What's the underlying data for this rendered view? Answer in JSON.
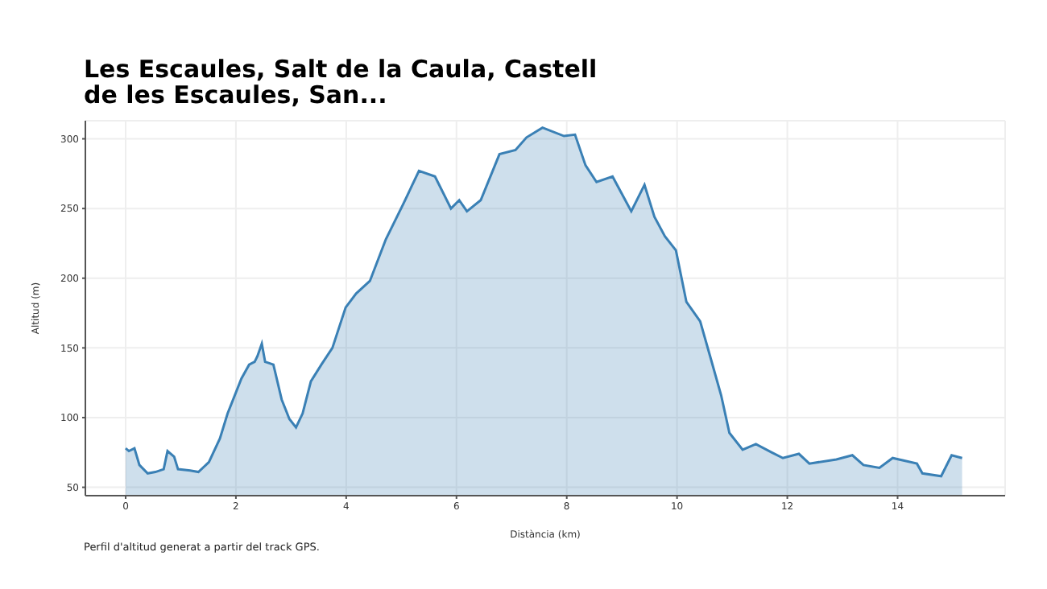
{
  "chart_data": {
    "type": "area",
    "title": "Les Escaules, Salt de la Caula, Castell de les Escaules, San...",
    "xlabel": "Distància (km)",
    "ylabel": "Altitud (m)",
    "x": [
      0,
      0.06,
      0.16,
      0.25,
      0.4,
      0.54,
      0.69,
      0.76,
      0.88,
      0.95,
      1.17,
      1.32,
      1.51,
      1.71,
      1.85,
      2.1,
      2.24,
      2.34,
      2.39,
      2.47,
      2.53,
      2.68,
      2.83,
      2.97,
      3.09,
      3.21,
      3.36,
      3.55,
      3.75,
      3.99,
      4.18,
      4.43,
      4.72,
      5.02,
      5.32,
      5.61,
      5.9,
      6.05,
      6.19,
      6.44,
      6.78,
      7.07,
      7.27,
      7.56,
      7.95,
      8.15,
      8.34,
      8.54,
      8.83,
      9.17,
      9.41,
      9.59,
      9.78,
      9.98,
      10.17,
      10.42,
      10.6,
      10.8,
      10.95,
      11.19,
      11.43,
      11.72,
      11.92,
      12.21,
      12.4,
      12.89,
      13.18,
      13.38,
      13.67,
      13.91,
      14.35,
      14.45,
      14.79,
      14.98,
      15.17
    ],
    "series": [
      {
        "color": "#3a80b5",
        "values": [
          78,
          76,
          78,
          66,
          60,
          61,
          63,
          76,
          72,
          63,
          62,
          61,
          68,
          85,
          103,
          128,
          138,
          140,
          144,
          153,
          140,
          138,
          113,
          99,
          93,
          103,
          126,
          138,
          150,
          179,
          189,
          198,
          228,
          252,
          277,
          273,
          250,
          256,
          248,
          256,
          289,
          292,
          301,
          308,
          302,
          303,
          281,
          269,
          273,
          248,
          267,
          244,
          230,
          220,
          183,
          169,
          144,
          116,
          89,
          77,
          81,
          75,
          71,
          74,
          67,
          70,
          73,
          66,
          64,
          71,
          67,
          60,
          58,
          73,
          71
        ]
      }
    ],
    "xlim": [
      -0.73,
      15.95
    ],
    "xticks": [
      0,
      2,
      4,
      6,
      8,
      10,
      12,
      14
    ],
    "ylim": [
      44,
      313
    ],
    "yticks": [
      50,
      100,
      150,
      200,
      250,
      300
    ],
    "grid": true,
    "annotations": [
      "Perfil d'altitud generat a partir del track GPS."
    ]
  }
}
